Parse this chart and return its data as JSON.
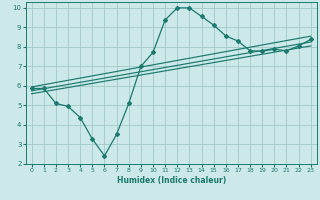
{
  "xlabel": "Humidex (Indice chaleur)",
  "ylabel": "",
  "xlim": [
    -0.5,
    23.5
  ],
  "ylim": [
    2,
    10.3
  ],
  "xticks": [
    0,
    1,
    2,
    3,
    4,
    5,
    6,
    7,
    8,
    9,
    10,
    11,
    12,
    13,
    14,
    15,
    16,
    17,
    18,
    19,
    20,
    21,
    22,
    23
  ],
  "yticks": [
    2,
    3,
    4,
    5,
    6,
    7,
    8,
    9,
    10
  ],
  "bg_color": "#cce8e8",
  "line_color": "#1a7a6e",
  "grid_color": "#a8cccc",
  "line1_x": [
    0,
    1,
    2,
    3,
    4,
    5,
    6,
    7,
    8,
    9,
    10,
    11,
    12,
    13,
    14,
    15,
    16,
    17,
    18,
    19,
    20,
    21,
    22,
    23
  ],
  "line1_y": [
    5.87,
    5.87,
    5.1,
    4.95,
    4.38,
    3.28,
    2.42,
    3.52,
    5.1,
    7.0,
    7.72,
    9.38,
    10.0,
    10.0,
    9.56,
    9.12,
    8.56,
    8.3,
    7.8,
    7.78,
    7.88,
    7.8,
    8.05,
    8.38
  ],
  "line2_x": [
    0,
    23
  ],
  "line2_y": [
    5.95,
    8.55
  ],
  "line3_x": [
    0,
    23
  ],
  "line3_y": [
    5.75,
    8.25
  ],
  "line4_x": [
    0,
    23
  ],
  "line4_y": [
    5.6,
    8.05
  ]
}
